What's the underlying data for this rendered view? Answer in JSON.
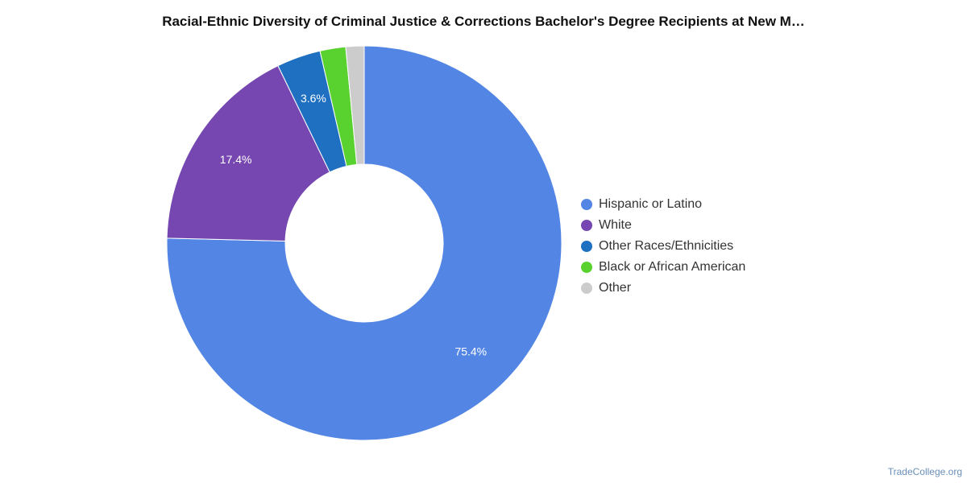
{
  "chart_data": {
    "type": "pie",
    "title": "Racial-Ethnic Diversity of Criminal Justice & Corrections Bachelor's Degree Recipients at New M…",
    "series": [
      {
        "name": "Hispanic or Latino",
        "value": 75.4,
        "label": "75.4%",
        "color": "#5386e4"
      },
      {
        "name": "White",
        "value": 17.4,
        "label": "17.4%",
        "color": "#7647b0"
      },
      {
        "name": "Other Races/Ethnicities",
        "value": 3.6,
        "label": "3.6%",
        "color": "#1f70c1"
      },
      {
        "name": "Black or African American",
        "value": 2.1,
        "label": "",
        "color": "#59d12e"
      },
      {
        "name": "Other",
        "value": 1.5,
        "label": "",
        "color": "#cccccc"
      }
    ],
    "legend_position": "right"
  },
  "footer": {
    "credit": "TradeCollege.org"
  }
}
